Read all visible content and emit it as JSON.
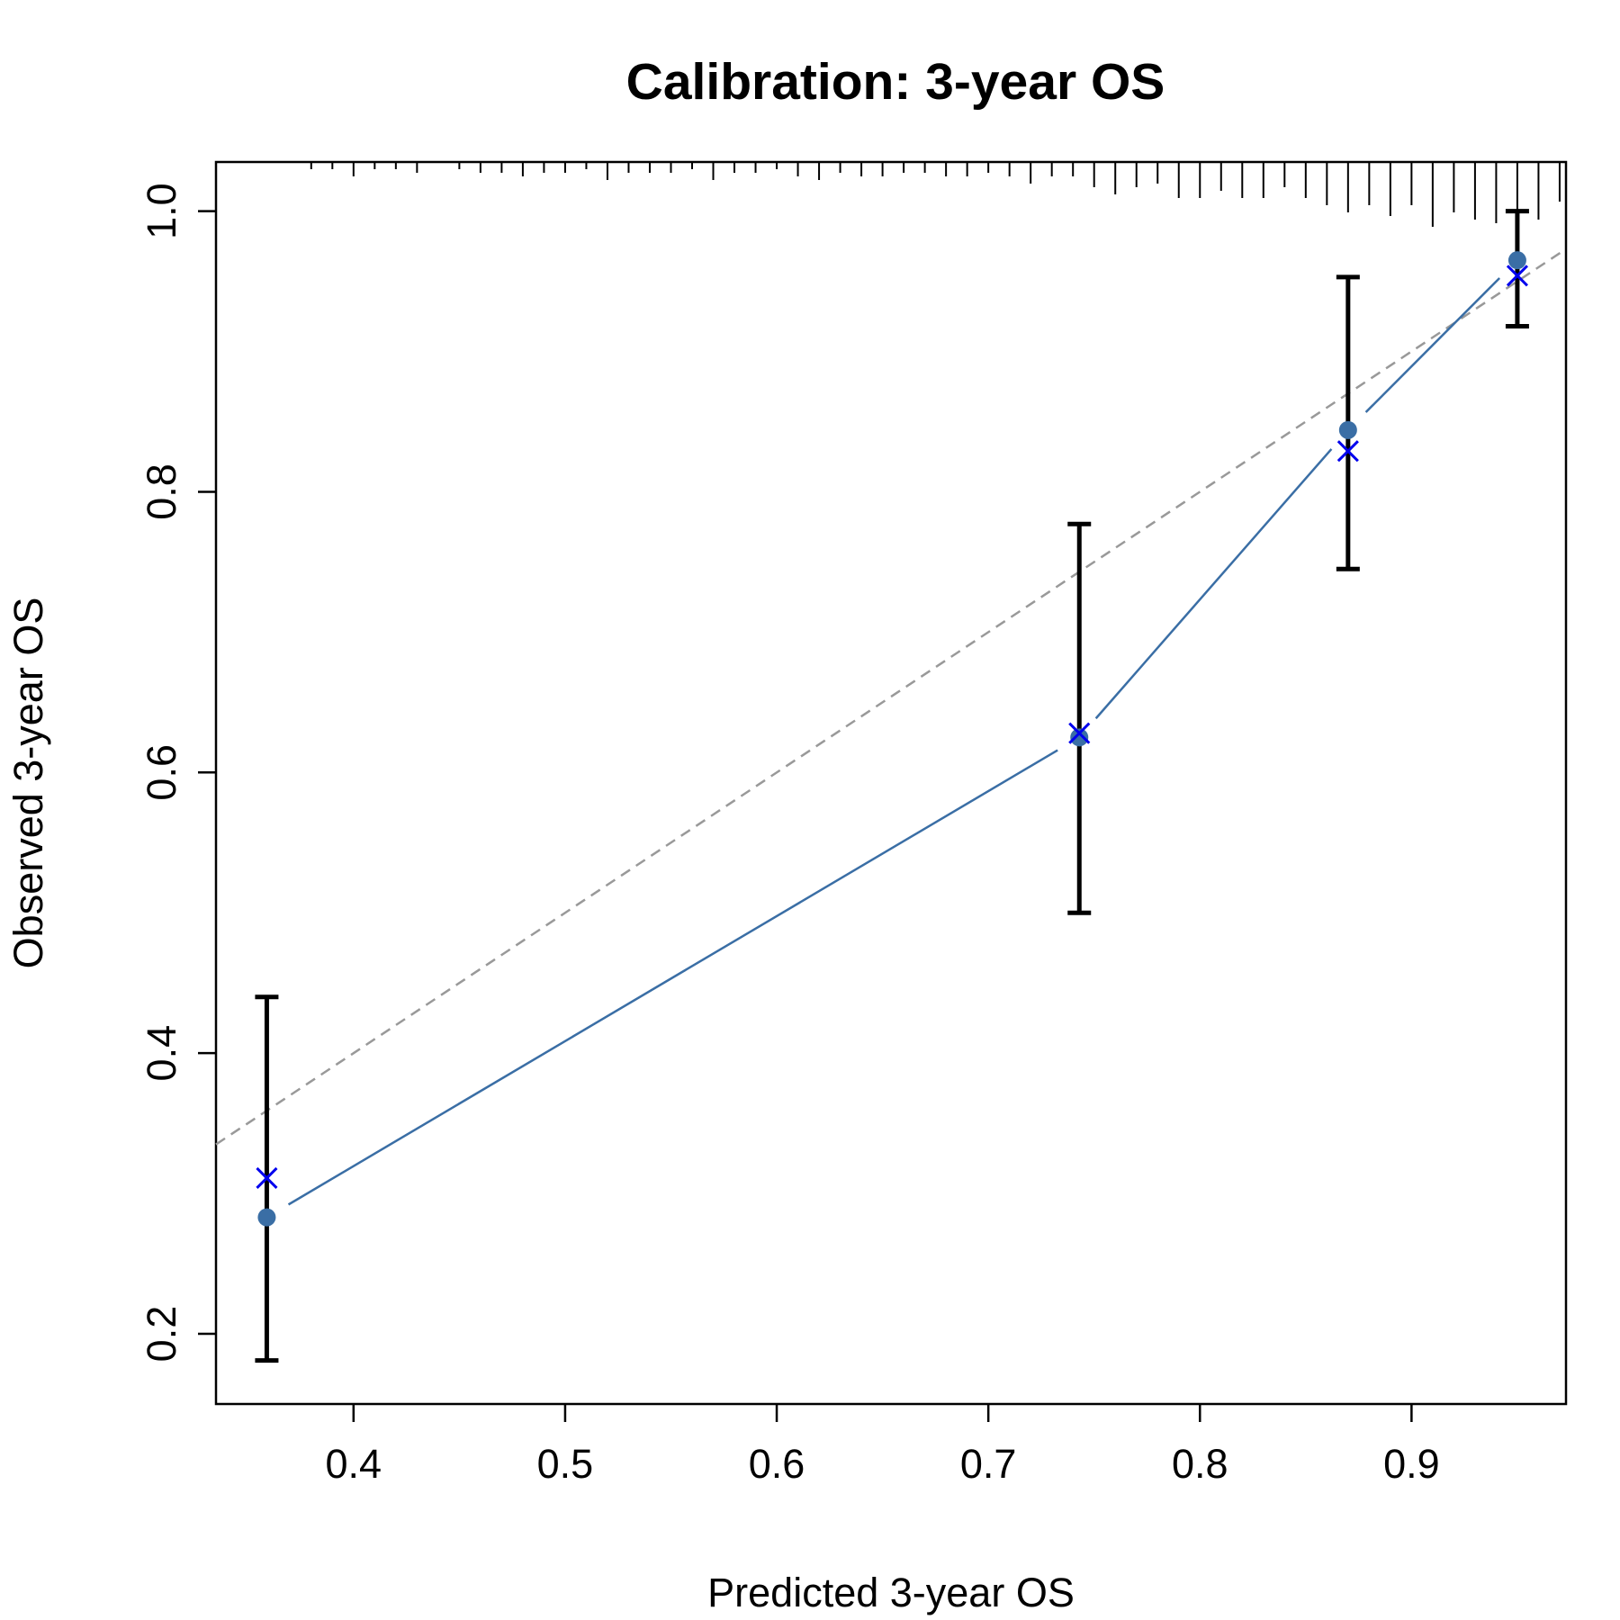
{
  "chart_data": {
    "type": "scatter",
    "title": "Calibration: 3-year OS",
    "xlabel": "Predicted 3-year OS",
    "ylabel": "Observed 3-year OS",
    "xlim": [
      0.335,
      0.973
    ],
    "ylim": [
      0.15,
      1.035
    ],
    "x_ticks": [
      0.4,
      0.5,
      0.6,
      0.7,
      0.8,
      0.9
    ],
    "x_tick_labels": [
      "0.4",
      "0.5",
      "0.6",
      "0.7",
      "0.8",
      "0.9"
    ],
    "y_ticks": [
      0.2,
      0.4,
      0.6,
      0.8,
      1.0
    ],
    "y_tick_labels": [
      "0.2",
      "0.4",
      "0.6",
      "0.8",
      "1.0"
    ],
    "grid": false,
    "reference_line": {
      "style": "dashed",
      "color": "#999999",
      "from": [
        0,
        0
      ],
      "to": [
        1,
        1
      ]
    },
    "observed": {
      "color": "#3a6ea5",
      "points": [
        {
          "x": 0.359,
          "y": 0.283,
          "lower": 0.181,
          "upper": 0.44
        },
        {
          "x": 0.743,
          "y": 0.625,
          "lower": 0.5,
          "upper": 0.777
        },
        {
          "x": 0.87,
          "y": 0.844,
          "lower": 0.745,
          "upper": 0.953
        },
        {
          "x": 0.95,
          "y": 0.965,
          "lower": 0.918,
          "upper": 1.0
        }
      ]
    },
    "corrected": {
      "color": "#0000ee",
      "marker": "x",
      "points": [
        {
          "x": 0.359,
          "y": 0.311
        },
        {
          "x": 0.743,
          "y": 0.628
        },
        {
          "x": 0.87,
          "y": 0.829
        },
        {
          "x": 0.95,
          "y": 0.954
        }
      ]
    },
    "rug": {
      "position": "top",
      "x": [
        0.38,
        0.39,
        0.4,
        0.41,
        0.42,
        0.43,
        0.45,
        0.46,
        0.47,
        0.48,
        0.49,
        0.5,
        0.51,
        0.52,
        0.53,
        0.54,
        0.55,
        0.56,
        0.57,
        0.58,
        0.59,
        0.6,
        0.61,
        0.62,
        0.63,
        0.64,
        0.65,
        0.66,
        0.67,
        0.68,
        0.69,
        0.7,
        0.71,
        0.72,
        0.73,
        0.74,
        0.75,
        0.76,
        0.77,
        0.78,
        0.79,
        0.8,
        0.81,
        0.82,
        0.83,
        0.84,
        0.85,
        0.86,
        0.87,
        0.88,
        0.89,
        0.9,
        0.91,
        0.92,
        0.93,
        0.94,
        0.95,
        0.96,
        0.97
      ],
      "heights": [
        0.2,
        0.2,
        0.4,
        0.2,
        0.2,
        0.3,
        0.2,
        0.3,
        0.3,
        0.4,
        0.3,
        0.3,
        0.2,
        0.5,
        0.3,
        0.3,
        0.3,
        0.2,
        0.5,
        0.3,
        0.3,
        0.2,
        0.4,
        0.5,
        0.3,
        0.4,
        0.4,
        0.3,
        0.3,
        0.4,
        0.4,
        0.3,
        0.4,
        0.6,
        0.4,
        0.4,
        0.7,
        0.9,
        0.7,
        0.6,
        1.0,
        1.0,
        0.8,
        1.0,
        1.0,
        0.7,
        1.0,
        1.2,
        1.4,
        1.2,
        1.5,
        1.2,
        1.8,
        1.4,
        1.6,
        1.7,
        1.8,
        1.6,
        1.1
      ]
    }
  }
}
